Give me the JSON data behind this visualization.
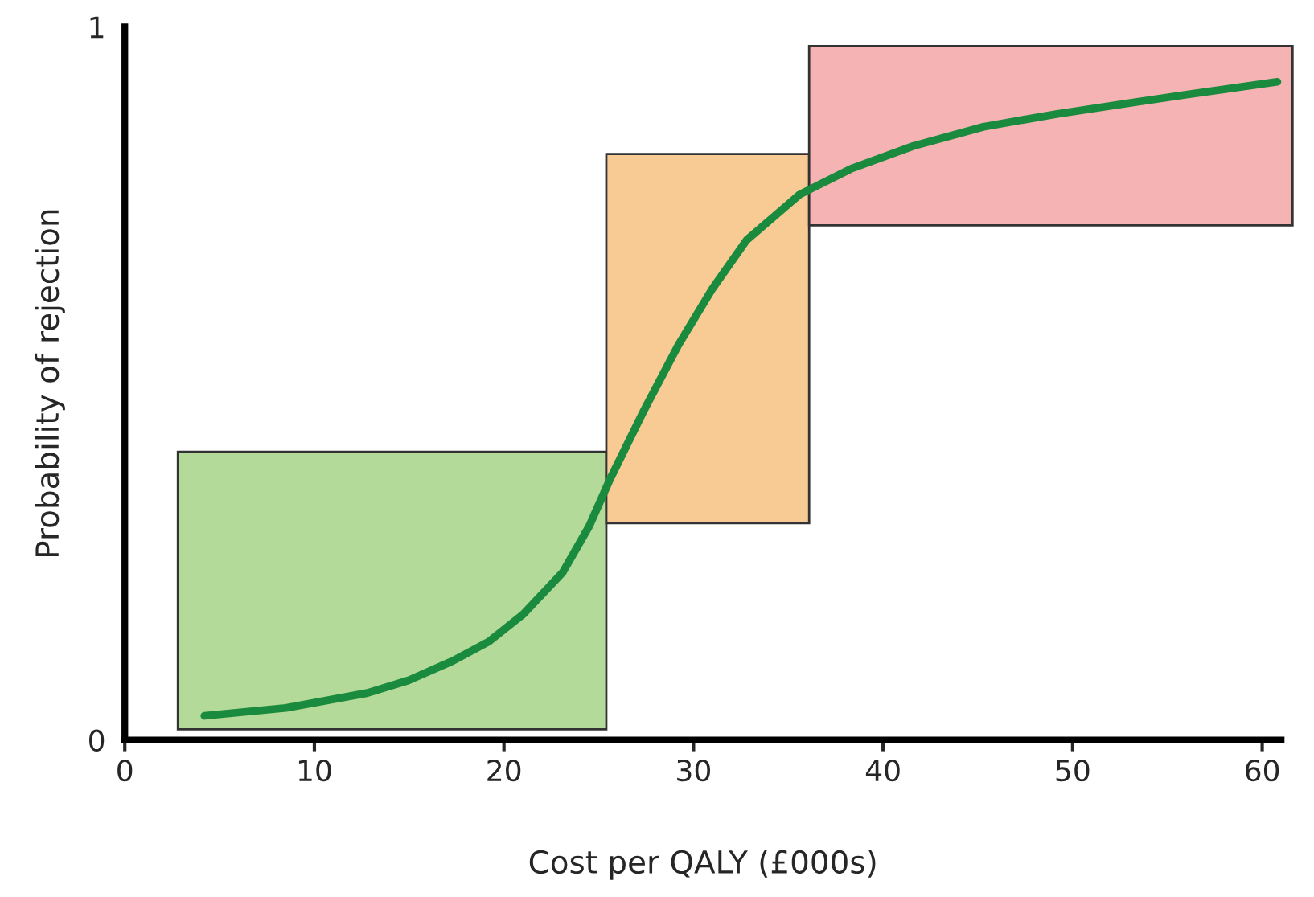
{
  "chart_data": {
    "type": "line",
    "xlabel": "Cost per QALY (£000s)",
    "ylabel": "Probability of rejection",
    "series": [
      {
        "color": "#1a8a3e",
        "x": [
          4.2,
          8.5,
          12.8,
          15,
          17.3,
          19.2,
          21,
          23.1,
          24.5,
          25.6,
          27.4,
          29.2,
          31,
          32.8,
          35.6,
          38.3,
          41.6,
          45.3,
          49.2,
          52.7,
          56,
          60.8
        ],
        "values": [
          0.034,
          0.045,
          0.066,
          0.084,
          0.111,
          0.138,
          0.176,
          0.235,
          0.3,
          0.366,
          0.463,
          0.554,
          0.633,
          0.701,
          0.765,
          0.801,
          0.833,
          0.86,
          0.878,
          0.892,
          0.905,
          0.923
        ]
      }
    ],
    "bands": [
      {
        "axis": "x",
        "from": 2.8,
        "to": 25.4,
        "color": "#b3da98"
      },
      {
        "axis": "x",
        "from": 25.4,
        "to": 36.1,
        "color": "#f8cb95"
      },
      {
        "axis": "x",
        "from": 36.1,
        "to": 61.6,
        "color": "#f6b3b3"
      }
    ],
    "xlim": [
      0,
      61
    ],
    "xticks": [
      0,
      10,
      20,
      30,
      40,
      50,
      60
    ],
    "ylim": [
      0,
      1
    ],
    "yticks": [
      0,
      1
    ],
    "grid": false,
    "legend": false,
    "marker": "none",
    "line_style": "solid"
  }
}
